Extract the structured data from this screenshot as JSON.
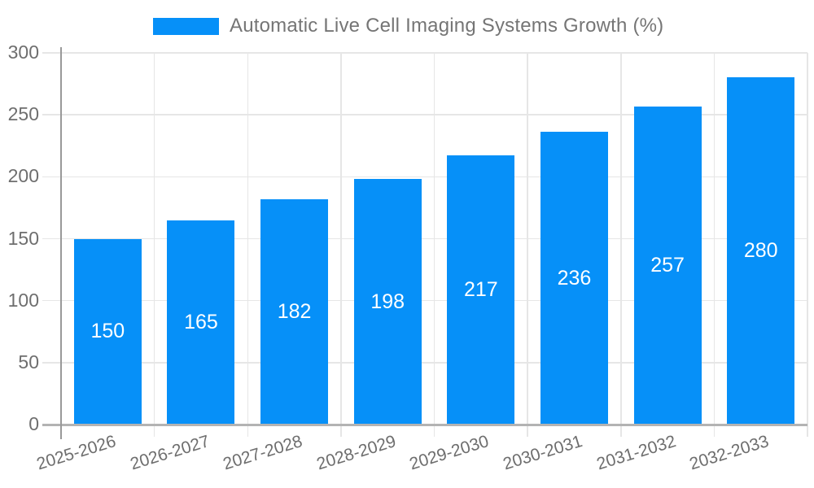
{
  "chart_data": {
    "type": "bar",
    "title": "Automatic Live Cell Imaging Systems Growth (%)",
    "categories": [
      "2025-2026",
      "2026-2027",
      "2027-2028",
      "2028-2029",
      "2029-2030",
      "2030-2031",
      "2031-2032",
      "2032-2033"
    ],
    "values": [
      150,
      165,
      182,
      198,
      217,
      236,
      257,
      280
    ],
    "xlabel": "",
    "ylabel": "",
    "ylim": [
      0,
      300
    ],
    "yticks": [
      0,
      50,
      100,
      150,
      200,
      250,
      300
    ],
    "grid": true,
    "legend_position": "top",
    "value_labels_inside_bars": true
  },
  "colors": {
    "bar": "#0690f8",
    "legend_text": "#757575",
    "axis_label": "#6e6e6e",
    "gridline": "#e6e6e6",
    "axis_line": "#b3b3b3",
    "y_axis_line": "#999999",
    "value_label": "#ffffff",
    "background": "#ffffff"
  }
}
